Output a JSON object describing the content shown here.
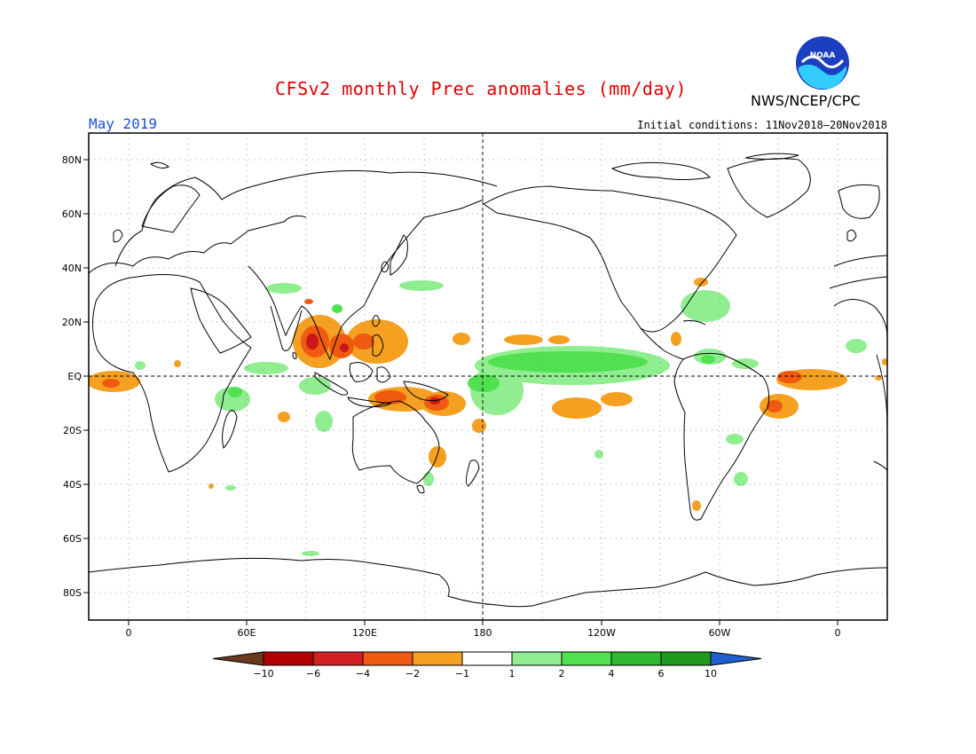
{
  "header": {
    "title": "CFSv2 monthly Prec anomalies (mm/day)",
    "agency": "NWS/NCEP/CPC",
    "month": "May 2019",
    "initial_conditions": "Initial conditions: 11Nov2018–20Nov2018",
    "logo_text": "NOAA"
  },
  "map": {
    "lat_labels": [
      "80N",
      "60N",
      "40N",
      "20N",
      "EQ",
      "20S",
      "40S",
      "60S",
      "80S"
    ],
    "lon_labels": [
      "0",
      "60E",
      "120E",
      "180",
      "120W",
      "60W",
      "0"
    ],
    "projection": "cylindrical",
    "lon_range": [
      -20,
      380
    ],
    "lat_range": [
      -90,
      90
    ],
    "grid": "dotted",
    "central_meridian_line": "180"
  },
  "colorbar": {
    "labels": [
      "−10",
      "−6",
      "−4",
      "−2",
      "−1",
      "1",
      "2",
      "4",
      "6",
      "10"
    ],
    "colors": [
      "#6b3a1e",
      "#b30000",
      "#d42020",
      "#f05a10",
      "#f5a020",
      "#ffffff",
      "#90ee90",
      "#50e050",
      "#30b830",
      "#1f9a1f",
      "#2060d0"
    ]
  },
  "anomaly_regions": [
    {
      "lon": 355,
      "lat": -2,
      "level": "dry",
      "color": "#f5a020"
    },
    {
      "lon": 95,
      "lat": 15,
      "level": "very-dry",
      "color": "#e03a10"
    },
    {
      "lon": 155,
      "lat": -10,
      "level": "very-dry",
      "color": "#e03a10"
    },
    {
      "lon": 225,
      "lat": 5,
      "level": "wet",
      "color": "#80e080"
    },
    {
      "lon": 320,
      "lat": -5,
      "level": "dry",
      "color": "#f5a020"
    }
  ]
}
